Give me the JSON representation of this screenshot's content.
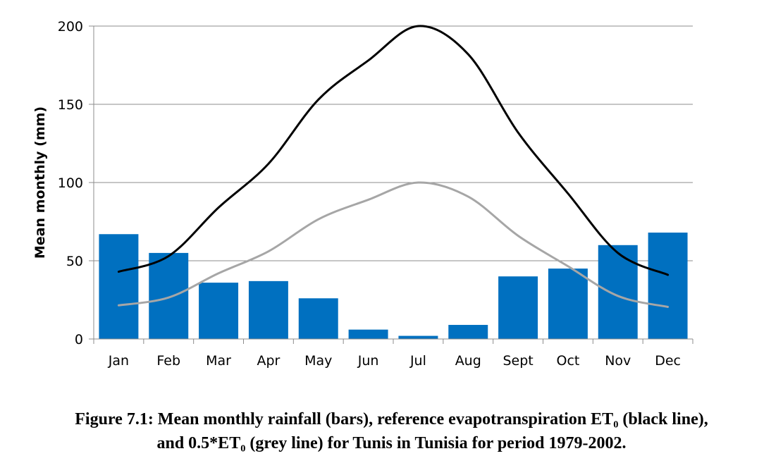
{
  "chart_data": {
    "type": "bar",
    "categories": [
      "Jan",
      "Feb",
      "Mar",
      "Apr",
      "May",
      "Jun",
      "Jul",
      "Aug",
      "Sept",
      "Oct",
      "Nov",
      "Dec"
    ],
    "series": [
      {
        "type": "bar",
        "color": "#0070C0",
        "values": [
          67,
          55,
          36,
          37,
          26,
          6,
          2,
          9,
          40,
          45,
          60,
          68
        ]
      },
      {
        "type": "line",
        "color": "#000000",
        "values": [
          43,
          53,
          84,
          112,
          153,
          178,
          200,
          182,
          132,
          93,
          55,
          41
        ]
      },
      {
        "type": "line",
        "color": "#A6A6A6",
        "values": [
          21.5,
          26.5,
          42,
          56,
          76.5,
          89,
          100,
          91,
          66,
          46.5,
          27.5,
          20.5
        ]
      }
    ],
    "ylabel": "Mean monthly (mm)",
    "ylim": [
      0,
      200
    ],
    "yticks": [
      0,
      50,
      100,
      150,
      200
    ],
    "grid": true
  },
  "caption": {
    "line1": "Figure 7.1: Mean monthly rainfall (bars), reference evapotranspiration ET₀ (black line),",
    "line2": "and 0.5*ET₀ (grey line) for Tunis in Tunisia for period 1979-2002."
  }
}
